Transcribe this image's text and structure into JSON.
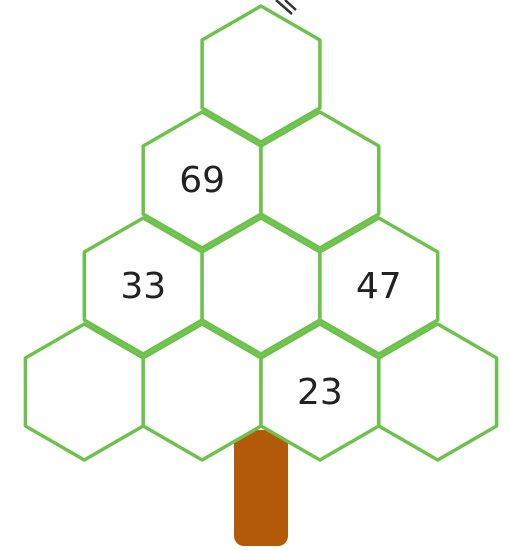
{
  "rows": [
    [
      null
    ],
    [
      69,
      null
    ],
    [
      33,
      null,
      47
    ],
    [
      null,
      null,
      23,
      null
    ]
  ]
}
